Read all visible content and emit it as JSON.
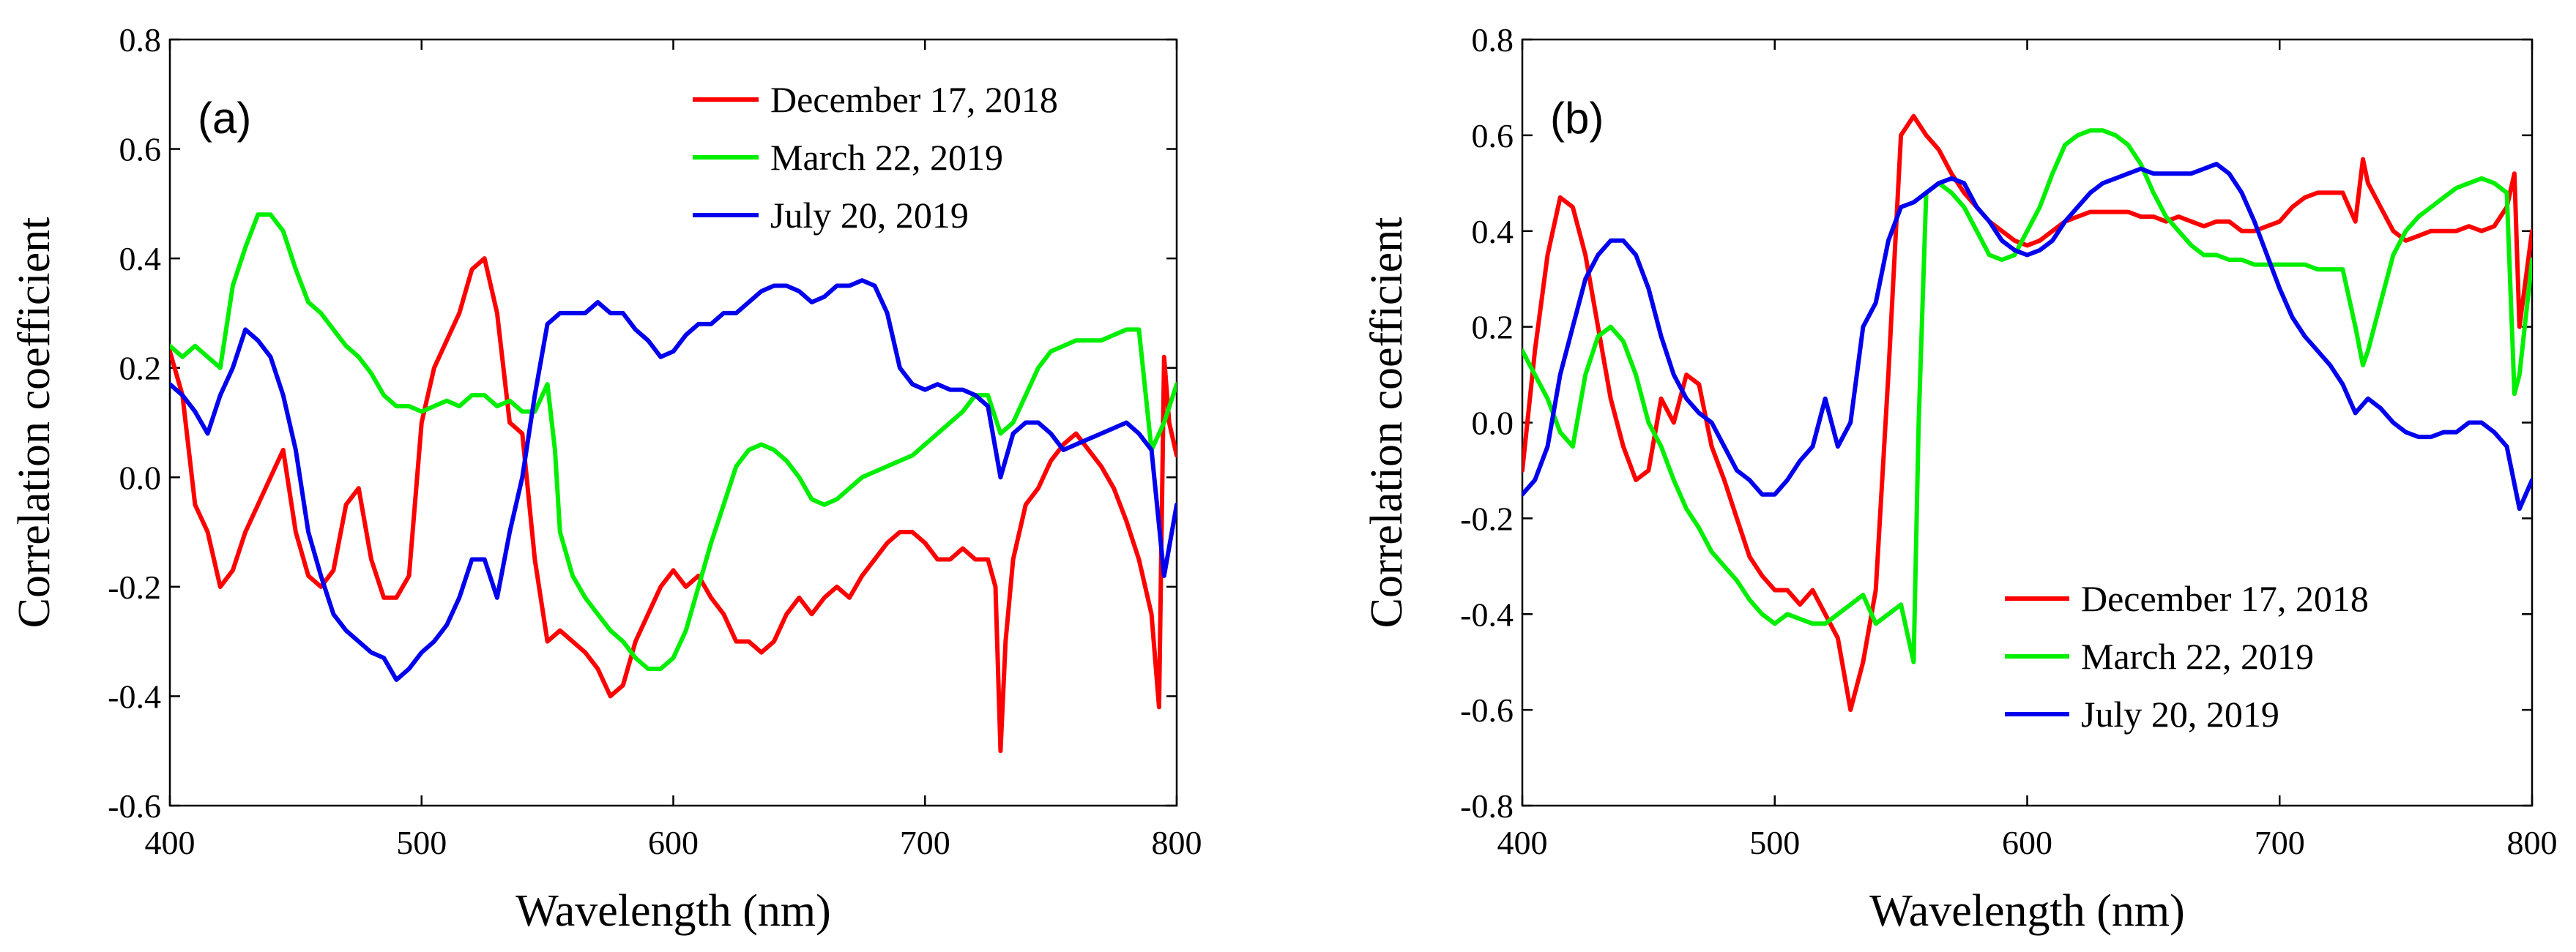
{
  "chart_data": [
    {
      "type": "line",
      "panel_label": "(a)",
      "xlabel": "Wavelength (nm)",
      "ylabel": "Correlation coefficient",
      "xlim": [
        400,
        800
      ],
      "ylim": [
        -0.6,
        0.8
      ],
      "x_ticks": [
        400,
        500,
        600,
        700,
        800
      ],
      "x_tick_labels": [
        "400",
        "500",
        "600",
        "700",
        "800"
      ],
      "y_ticks": [
        -0.6,
        -0.4,
        -0.2,
        0.0,
        0.2,
        0.4,
        0.6,
        0.8
      ],
      "y_tick_labels": [
        "-0.6",
        "-0.4",
        "-0.2",
        "0.0",
        "0.2",
        "0.4",
        "0.6",
        "0.8"
      ],
      "grid": false,
      "legend_position": "top-right",
      "series": [
        {
          "name": "December 17, 2018",
          "color": "#ff0000",
          "x": [
            400,
            405,
            410,
            415,
            420,
            425,
            430,
            435,
            440,
            445,
            450,
            455,
            460,
            465,
            470,
            475,
            480,
            485,
            490,
            495,
            500,
            505,
            510,
            515,
            520,
            525,
            530,
            535,
            540,
            545,
            550,
            555,
            560,
            565,
            570,
            575,
            580,
            585,
            590,
            595,
            600,
            605,
            610,
            615,
            620,
            625,
            630,
            635,
            640,
            645,
            650,
            655,
            660,
            665,
            670,
            675,
            680,
            685,
            690,
            695,
            700,
            705,
            710,
            715,
            720,
            725,
            728,
            730,
            732,
            735,
            740,
            745,
            750,
            755,
            760,
            765,
            770,
            775,
            780,
            785,
            790,
            793,
            795,
            797,
            800
          ],
          "values": [
            0.23,
            0.15,
            -0.05,
            -0.1,
            -0.2,
            -0.17,
            -0.1,
            -0.05,
            0.0,
            0.05,
            -0.1,
            -0.18,
            -0.2,
            -0.17,
            -0.05,
            -0.02,
            -0.15,
            -0.22,
            -0.22,
            -0.18,
            0.1,
            0.2,
            0.25,
            0.3,
            0.38,
            0.4,
            0.3,
            0.1,
            0.08,
            -0.15,
            -0.3,
            -0.28,
            -0.3,
            -0.32,
            -0.35,
            -0.4,
            -0.38,
            -0.3,
            -0.25,
            -0.2,
            -0.17,
            -0.2,
            -0.18,
            -0.22,
            -0.25,
            -0.3,
            -0.3,
            -0.32,
            -0.3,
            -0.25,
            -0.22,
            -0.25,
            -0.22,
            -0.2,
            -0.22,
            -0.18,
            -0.15,
            -0.12,
            -0.1,
            -0.1,
            -0.12,
            -0.15,
            -0.15,
            -0.13,
            -0.15,
            -0.15,
            -0.2,
            -0.5,
            -0.3,
            -0.15,
            -0.05,
            -0.02,
            0.03,
            0.06,
            0.08,
            0.05,
            0.02,
            -0.02,
            -0.08,
            -0.15,
            -0.25,
            -0.42,
            0.22,
            0.1,
            0.04
          ]
        },
        {
          "name": "March 22, 2019",
          "color": "#00ee00",
          "x": [
            400,
            405,
            410,
            415,
            420,
            425,
            430,
            435,
            440,
            445,
            450,
            455,
            460,
            465,
            470,
            475,
            480,
            485,
            490,
            495,
            500,
            505,
            510,
            515,
            520,
            525,
            530,
            535,
            540,
            545,
            550,
            553,
            555,
            560,
            565,
            570,
            575,
            580,
            585,
            590,
            595,
            600,
            605,
            610,
            615,
            620,
            625,
            630,
            635,
            640,
            645,
            650,
            655,
            660,
            665,
            670,
            675,
            680,
            685,
            690,
            695,
            700,
            705,
            710,
            715,
            720,
            725,
            730,
            735,
            740,
            745,
            750,
            755,
            760,
            765,
            770,
            775,
            780,
            785,
            790,
            795,
            800
          ],
          "values": [
            0.24,
            0.22,
            0.24,
            0.22,
            0.2,
            0.35,
            0.42,
            0.48,
            0.48,
            0.45,
            0.38,
            0.32,
            0.3,
            0.27,
            0.24,
            0.22,
            0.19,
            0.15,
            0.13,
            0.13,
            0.12,
            0.13,
            0.14,
            0.13,
            0.15,
            0.15,
            0.13,
            0.14,
            0.12,
            0.12,
            0.17,
            0.05,
            -0.1,
            -0.18,
            -0.22,
            -0.25,
            -0.28,
            -0.3,
            -0.33,
            -0.35,
            -0.35,
            -0.33,
            -0.28,
            -0.2,
            -0.12,
            -0.05,
            0.02,
            0.05,
            0.06,
            0.05,
            0.03,
            0.0,
            -0.04,
            -0.05,
            -0.04,
            -0.02,
            0.0,
            0.01,
            0.02,
            0.03,
            0.04,
            0.06,
            0.08,
            0.1,
            0.12,
            0.15,
            0.15,
            0.08,
            0.1,
            0.15,
            0.2,
            0.23,
            0.24,
            0.25,
            0.25,
            0.25,
            0.26,
            0.27,
            0.27,
            0.05,
            0.1,
            0.17
          ]
        },
        {
          "name": "July 20, 2019",
          "color": "#0000ee",
          "x": [
            400,
            405,
            410,
            415,
            420,
            425,
            430,
            435,
            440,
            445,
            450,
            455,
            460,
            465,
            470,
            475,
            480,
            485,
            490,
            495,
            500,
            505,
            510,
            515,
            520,
            525,
            530,
            535,
            540,
            545,
            550,
            555,
            560,
            565,
            570,
            575,
            580,
            585,
            590,
            595,
            600,
            605,
            610,
            615,
            620,
            625,
            630,
            635,
            640,
            645,
            650,
            655,
            660,
            665,
            670,
            675,
            680,
            685,
            690,
            695,
            700,
            705,
            710,
            715,
            720,
            725,
            730,
            735,
            740,
            745,
            750,
            755,
            760,
            765,
            770,
            775,
            780,
            785,
            790,
            795,
            800
          ],
          "values": [
            0.17,
            0.15,
            0.12,
            0.08,
            0.15,
            0.2,
            0.27,
            0.25,
            0.22,
            0.15,
            0.05,
            -0.1,
            -0.18,
            -0.25,
            -0.28,
            -0.3,
            -0.32,
            -0.33,
            -0.37,
            -0.35,
            -0.32,
            -0.3,
            -0.27,
            -0.22,
            -0.15,
            -0.15,
            -0.22,
            -0.1,
            0.0,
            0.15,
            0.28,
            0.3,
            0.3,
            0.3,
            0.32,
            0.3,
            0.3,
            0.27,
            0.25,
            0.22,
            0.23,
            0.26,
            0.28,
            0.28,
            0.3,
            0.3,
            0.32,
            0.34,
            0.35,
            0.35,
            0.34,
            0.32,
            0.33,
            0.35,
            0.35,
            0.36,
            0.35,
            0.3,
            0.2,
            0.17,
            0.16,
            0.17,
            0.16,
            0.16,
            0.15,
            0.13,
            0.0,
            0.08,
            0.1,
            0.1,
            0.08,
            0.05,
            0.06,
            0.07,
            0.08,
            0.09,
            0.1,
            0.08,
            0.05,
            -0.18,
            -0.05
          ]
        }
      ]
    },
    {
      "type": "line",
      "panel_label": "(b)",
      "xlabel": "Wavelength (nm)",
      "ylabel": "Correlation coefficient",
      "xlim": [
        400,
        800
      ],
      "ylim": [
        -0.8,
        0.8
      ],
      "x_ticks": [
        400,
        500,
        600,
        700,
        800
      ],
      "x_tick_labels": [
        "400",
        "500",
        "600",
        "700",
        "800"
      ],
      "y_ticks": [
        -0.8,
        -0.6,
        -0.4,
        -0.2,
        0.0,
        0.2,
        0.4,
        0.6,
        0.8
      ],
      "y_tick_labels": [
        "-0.8",
        "-0.6",
        "-0.4",
        "-0.2",
        "0.0",
        "0.2",
        "0.4",
        "0.6",
        "0.8"
      ],
      "grid": false,
      "legend_position": "bottom-right",
      "series": [
        {
          "name": "December 17, 2018",
          "color": "#ff0000",
          "x": [
            400,
            405,
            410,
            415,
            420,
            425,
            430,
            435,
            440,
            445,
            450,
            455,
            460,
            465,
            470,
            475,
            480,
            485,
            490,
            495,
            500,
            505,
            510,
            515,
            520,
            525,
            530,
            535,
            540,
            545,
            550,
            555,
            560,
            565,
            570,
            575,
            580,
            585,
            590,
            595,
            600,
            605,
            610,
            615,
            620,
            625,
            630,
            635,
            640,
            645,
            650,
            655,
            660,
            665,
            670,
            675,
            680,
            685,
            690,
            695,
            700,
            705,
            710,
            715,
            720,
            725,
            730,
            733,
            735,
            740,
            745,
            750,
            755,
            760,
            765,
            770,
            775,
            780,
            785,
            790,
            793,
            795,
            800
          ],
          "values": [
            -0.1,
            0.15,
            0.35,
            0.47,
            0.45,
            0.35,
            0.2,
            0.05,
            -0.05,
            -0.12,
            -0.1,
            0.05,
            0.0,
            0.1,
            0.08,
            -0.05,
            -0.12,
            -0.2,
            -0.28,
            -0.32,
            -0.35,
            -0.35,
            -0.38,
            -0.35,
            -0.4,
            -0.45,
            -0.6,
            -0.5,
            -0.35,
            0.1,
            0.6,
            0.64,
            0.6,
            0.57,
            0.52,
            0.48,
            0.45,
            0.42,
            0.4,
            0.38,
            0.37,
            0.38,
            0.4,
            0.42,
            0.43,
            0.44,
            0.44,
            0.44,
            0.44,
            0.43,
            0.43,
            0.42,
            0.43,
            0.42,
            0.41,
            0.42,
            0.42,
            0.4,
            0.4,
            0.41,
            0.42,
            0.45,
            0.47,
            0.48,
            0.48,
            0.48,
            0.42,
            0.55,
            0.5,
            0.45,
            0.4,
            0.38,
            0.39,
            0.4,
            0.4,
            0.4,
            0.41,
            0.4,
            0.41,
            0.45,
            0.52,
            0.2,
            0.4
          ]
        },
        {
          "name": "March 22, 2019",
          "color": "#00ee00",
          "x": [
            400,
            405,
            410,
            415,
            420,
            425,
            430,
            435,
            440,
            445,
            450,
            455,
            460,
            465,
            470,
            475,
            480,
            485,
            490,
            495,
            500,
            505,
            510,
            515,
            520,
            525,
            530,
            535,
            540,
            545,
            550,
            555,
            557,
            560,
            565,
            570,
            575,
            580,
            585,
            590,
            595,
            600,
            605,
            610,
            615,
            620,
            625,
            630,
            635,
            640,
            645,
            650,
            655,
            660,
            665,
            670,
            675,
            680,
            685,
            690,
            695,
            700,
            705,
            710,
            715,
            720,
            725,
            730,
            733,
            735,
            740,
            745,
            750,
            755,
            760,
            765,
            770,
            775,
            780,
            785,
            790,
            793,
            795,
            800
          ],
          "values": [
            0.15,
            0.1,
            0.05,
            -0.02,
            -0.05,
            0.1,
            0.18,
            0.2,
            0.17,
            0.1,
            0.0,
            -0.05,
            -0.12,
            -0.18,
            -0.22,
            -0.27,
            -0.3,
            -0.33,
            -0.37,
            -0.4,
            -0.42,
            -0.4,
            -0.41,
            -0.42,
            -0.42,
            -0.4,
            -0.38,
            -0.36,
            -0.42,
            -0.4,
            -0.38,
            -0.5,
            0.0,
            0.48,
            0.5,
            0.48,
            0.45,
            0.4,
            0.35,
            0.34,
            0.35,
            0.4,
            0.45,
            0.52,
            0.58,
            0.6,
            0.61,
            0.61,
            0.6,
            0.58,
            0.54,
            0.48,
            0.43,
            0.4,
            0.37,
            0.35,
            0.35,
            0.34,
            0.34,
            0.33,
            0.33,
            0.33,
            0.33,
            0.33,
            0.32,
            0.32,
            0.32,
            0.2,
            0.12,
            0.15,
            0.25,
            0.35,
            0.4,
            0.43,
            0.45,
            0.47,
            0.49,
            0.5,
            0.51,
            0.5,
            0.48,
            0.06,
            0.1,
            0.34
          ]
        },
        {
          "name": "July 20, 2019",
          "color": "#0000ee",
          "x": [
            400,
            405,
            410,
            415,
            420,
            425,
            430,
            435,
            440,
            445,
            450,
            455,
            460,
            465,
            470,
            475,
            480,
            485,
            490,
            495,
            500,
            505,
            510,
            515,
            520,
            525,
            530,
            535,
            540,
            545,
            550,
            555,
            560,
            565,
            570,
            575,
            580,
            585,
            590,
            595,
            600,
            605,
            610,
            615,
            620,
            625,
            630,
            635,
            640,
            645,
            650,
            655,
            660,
            665,
            670,
            675,
            680,
            685,
            690,
            695,
            700,
            705,
            710,
            715,
            720,
            725,
            730,
            735,
            740,
            745,
            750,
            755,
            760,
            765,
            770,
            775,
            780,
            785,
            790,
            795,
            800
          ],
          "values": [
            -0.15,
            -0.12,
            -0.05,
            0.1,
            0.2,
            0.3,
            0.35,
            0.38,
            0.38,
            0.35,
            0.28,
            0.18,
            0.1,
            0.05,
            0.02,
            0.0,
            -0.05,
            -0.1,
            -0.12,
            -0.15,
            -0.15,
            -0.12,
            -0.08,
            -0.05,
            0.05,
            -0.05,
            0.0,
            0.2,
            0.25,
            0.38,
            0.45,
            0.46,
            0.48,
            0.5,
            0.51,
            0.5,
            0.45,
            0.42,
            0.38,
            0.36,
            0.35,
            0.36,
            0.38,
            0.42,
            0.45,
            0.48,
            0.5,
            0.51,
            0.52,
            0.53,
            0.52,
            0.52,
            0.52,
            0.52,
            0.53,
            0.54,
            0.52,
            0.48,
            0.42,
            0.35,
            0.28,
            0.22,
            0.18,
            0.15,
            0.12,
            0.08,
            0.02,
            0.05,
            0.03,
            0.0,
            -0.02,
            -0.03,
            -0.03,
            -0.02,
            -0.02,
            0.0,
            0.0,
            -0.02,
            -0.05,
            -0.18,
            -0.12
          ]
        }
      ]
    }
  ]
}
